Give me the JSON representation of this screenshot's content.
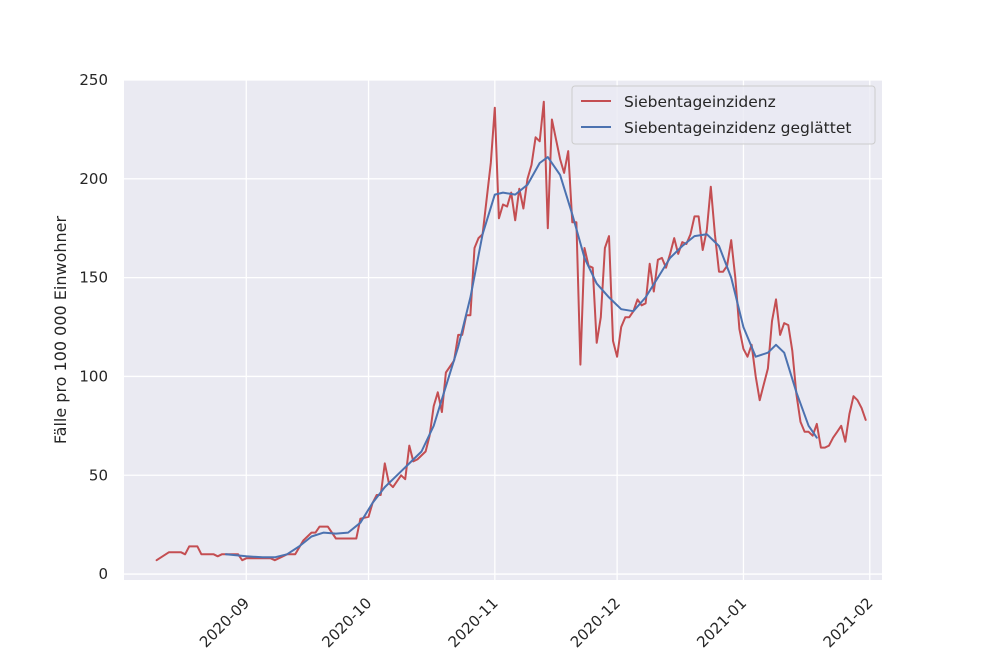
{
  "chart_data": {
    "type": "line",
    "title": "",
    "xlabel": "",
    "ylabel": "Fälle pro 100 000 Einwohner",
    "ylim": [
      -3,
      250
    ],
    "xlim": [
      "2020-08-02",
      "2021-02-04"
    ],
    "yticks": [
      {
        "value": 0,
        "label": "0"
      },
      {
        "value": 50,
        "label": "50"
      },
      {
        "value": 100,
        "label": "100"
      },
      {
        "value": 150,
        "label": "150"
      },
      {
        "value": 200,
        "label": "200"
      },
      {
        "value": 250,
        "label": "250"
      }
    ],
    "xticks": [
      {
        "value": "2020-09-01",
        "label": "2020-09"
      },
      {
        "value": "2020-10-01",
        "label": "2020-10"
      },
      {
        "value": "2020-11-01",
        "label": "2020-11"
      },
      {
        "value": "2020-12-01",
        "label": "2020-12"
      },
      {
        "value": "2021-01-01",
        "label": "2021-01"
      },
      {
        "value": "2021-02-01",
        "label": "2021-02"
      }
    ],
    "grid": true,
    "legend_position": "top-right",
    "colors": {
      "background": "#eaeaf2",
      "grid": "#ffffff",
      "raw": "#c44e52",
      "smooth": "#4c72b0"
    },
    "series": [
      {
        "name": "Siebentageinzidenz",
        "color": "#c44e52",
        "points": [
          [
            "2020-08-10",
            7
          ],
          [
            "2020-08-13",
            11
          ],
          [
            "2020-08-16",
            11
          ],
          [
            "2020-08-17",
            10
          ],
          [
            "2020-08-18",
            14
          ],
          [
            "2020-08-20",
            14
          ],
          [
            "2020-08-21",
            10
          ],
          [
            "2020-08-24",
            10
          ],
          [
            "2020-08-25",
            9
          ],
          [
            "2020-08-26",
            10
          ],
          [
            "2020-08-28",
            10
          ],
          [
            "2020-08-30",
            10
          ],
          [
            "2020-08-31",
            7
          ],
          [
            "2020-09-01",
            8
          ],
          [
            "2020-09-04",
            8
          ],
          [
            "2020-09-07",
            8
          ],
          [
            "2020-09-08",
            7
          ],
          [
            "2020-09-10",
            9
          ],
          [
            "2020-09-11",
            10
          ],
          [
            "2020-09-13",
            10
          ],
          [
            "2020-09-15",
            17
          ],
          [
            "2020-09-17",
            21
          ],
          [
            "2020-09-18",
            21
          ],
          [
            "2020-09-19",
            24
          ],
          [
            "2020-09-21",
            24
          ],
          [
            "2020-09-23",
            18
          ],
          [
            "2020-09-25",
            18
          ],
          [
            "2020-09-26",
            18
          ],
          [
            "2020-09-28",
            18
          ],
          [
            "2020-09-29",
            28
          ],
          [
            "2020-10-01",
            29
          ],
          [
            "2020-10-02",
            36
          ],
          [
            "2020-10-03",
            40
          ],
          [
            "2020-10-04",
            40
          ],
          [
            "2020-10-05",
            56
          ],
          [
            "2020-10-06",
            46
          ],
          [
            "2020-10-07",
            44
          ],
          [
            "2020-10-09",
            50
          ],
          [
            "2020-10-10",
            48
          ],
          [
            "2020-10-11",
            65
          ],
          [
            "2020-10-12",
            57
          ],
          [
            "2020-10-13",
            58
          ],
          [
            "2020-10-15",
            62
          ],
          [
            "2020-10-16",
            70
          ],
          [
            "2020-10-17",
            85
          ],
          [
            "2020-10-18",
            92
          ],
          [
            "2020-10-19",
            82
          ],
          [
            "2020-10-20",
            102
          ],
          [
            "2020-10-22",
            108
          ],
          [
            "2020-10-23",
            121
          ],
          [
            "2020-10-24",
            121
          ],
          [
            "2020-10-25",
            131
          ],
          [
            "2020-10-26",
            131
          ],
          [
            "2020-10-27",
            165
          ],
          [
            "2020-10-28",
            170
          ],
          [
            "2020-10-29",
            172
          ],
          [
            "2020-10-30",
            190
          ],
          [
            "2020-10-31",
            208
          ],
          [
            "2020-11-01",
            236
          ],
          [
            "2020-11-02",
            180
          ],
          [
            "2020-11-03",
            187
          ],
          [
            "2020-11-04",
            186
          ],
          [
            "2020-11-05",
            193
          ],
          [
            "2020-11-06",
            179
          ],
          [
            "2020-11-07",
            195
          ],
          [
            "2020-11-08",
            185
          ],
          [
            "2020-11-09",
            200
          ],
          [
            "2020-11-10",
            207
          ],
          [
            "2020-11-11",
            221
          ],
          [
            "2020-11-12",
            219
          ],
          [
            "2020-11-13",
            239
          ],
          [
            "2020-11-14",
            175
          ],
          [
            "2020-11-15",
            230
          ],
          [
            "2020-11-16",
            220
          ],
          [
            "2020-11-17",
            210
          ],
          [
            "2020-11-18",
            203
          ],
          [
            "2020-11-19",
            214
          ],
          [
            "2020-11-20",
            178
          ],
          [
            "2020-11-21",
            178
          ],
          [
            "2020-11-22",
            106
          ],
          [
            "2020-11-23",
            165
          ],
          [
            "2020-11-24",
            156
          ],
          [
            "2020-11-25",
            155
          ],
          [
            "2020-11-26",
            117
          ],
          [
            "2020-11-27",
            130
          ],
          [
            "2020-11-28",
            165
          ],
          [
            "2020-11-29",
            171
          ],
          [
            "2020-11-30",
            118
          ],
          [
            "2020-12-01",
            110
          ],
          [
            "2020-12-02",
            125
          ],
          [
            "2020-12-03",
            130
          ],
          [
            "2020-12-04",
            130
          ],
          [
            "2020-12-05",
            133
          ],
          [
            "2020-12-06",
            139
          ],
          [
            "2020-12-07",
            136
          ],
          [
            "2020-12-08",
            137
          ],
          [
            "2020-12-09",
            157
          ],
          [
            "2020-12-10",
            143
          ],
          [
            "2020-12-11",
            159
          ],
          [
            "2020-12-12",
            160
          ],
          [
            "2020-12-13",
            155
          ],
          [
            "2020-12-14",
            162
          ],
          [
            "2020-12-15",
            170
          ],
          [
            "2020-12-16",
            162
          ],
          [
            "2020-12-17",
            168
          ],
          [
            "2020-12-18",
            167
          ],
          [
            "2020-12-19",
            172
          ],
          [
            "2020-12-20",
            181
          ],
          [
            "2020-12-21",
            181
          ],
          [
            "2020-12-22",
            164
          ],
          [
            "2020-12-23",
            174
          ],
          [
            "2020-12-24",
            196
          ],
          [
            "2020-12-25",
            172
          ],
          [
            "2020-12-26",
            153
          ],
          [
            "2020-12-27",
            153
          ],
          [
            "2020-12-28",
            156
          ],
          [
            "2020-12-29",
            169
          ],
          [
            "2020-12-30",
            150
          ],
          [
            "2020-12-31",
            124
          ],
          [
            "2021-01-01",
            114
          ],
          [
            "2021-01-02",
            110
          ],
          [
            "2021-01-03",
            116
          ],
          [
            "2021-01-04",
            100
          ],
          [
            "2021-01-05",
            88
          ],
          [
            "2021-01-06",
            96
          ],
          [
            "2021-01-07",
            104
          ],
          [
            "2021-01-08",
            128
          ],
          [
            "2021-01-09",
            139
          ],
          [
            "2021-01-10",
            121
          ],
          [
            "2021-01-11",
            127
          ],
          [
            "2021-01-12",
            126
          ],
          [
            "2021-01-13",
            113
          ],
          [
            "2021-01-14",
            91
          ],
          [
            "2021-01-15",
            77
          ],
          [
            "2021-01-16",
            72
          ],
          [
            "2021-01-17",
            72
          ],
          [
            "2021-01-18",
            70
          ],
          [
            "2021-01-19",
            76
          ],
          [
            "2021-01-20",
            64
          ],
          [
            "2021-01-21",
            64
          ],
          [
            "2021-01-22",
            65
          ],
          [
            "2021-01-23",
            69
          ],
          [
            "2021-01-24",
            72
          ],
          [
            "2021-01-25",
            75
          ],
          [
            "2021-01-26",
            67
          ],
          [
            "2021-01-27",
            81
          ],
          [
            "2021-01-28",
            90
          ],
          [
            "2021-01-29",
            88
          ],
          [
            "2021-01-30",
            84
          ],
          [
            "2021-01-31",
            78
          ]
        ]
      },
      {
        "name": "Siebentageinzidenz geglättet",
        "color": "#4c72b0",
        "points": [
          [
            "2020-08-27",
            10
          ],
          [
            "2020-09-01",
            9
          ],
          [
            "2020-09-05",
            8.5
          ],
          [
            "2020-09-08",
            8.5
          ],
          [
            "2020-09-11",
            10
          ],
          [
            "2020-09-14",
            14
          ],
          [
            "2020-09-17",
            19
          ],
          [
            "2020-09-20",
            21
          ],
          [
            "2020-09-23",
            20.5
          ],
          [
            "2020-09-26",
            21
          ],
          [
            "2020-09-29",
            26
          ],
          [
            "2020-10-02",
            36
          ],
          [
            "2020-10-05",
            44
          ],
          [
            "2020-10-08",
            50
          ],
          [
            "2020-10-11",
            56
          ],
          [
            "2020-10-14",
            62
          ],
          [
            "2020-10-17",
            75
          ],
          [
            "2020-10-20",
            95
          ],
          [
            "2020-10-23",
            115
          ],
          [
            "2020-10-26",
            140
          ],
          [
            "2020-10-29",
            172
          ],
          [
            "2020-11-01",
            192
          ],
          [
            "2020-11-03",
            193
          ],
          [
            "2020-11-06",
            192
          ],
          [
            "2020-11-09",
            197
          ],
          [
            "2020-11-12",
            208
          ],
          [
            "2020-11-14",
            211
          ],
          [
            "2020-11-17",
            202
          ],
          [
            "2020-11-20",
            182
          ],
          [
            "2020-11-23",
            160
          ],
          [
            "2020-11-26",
            147
          ],
          [
            "2020-11-29",
            140
          ],
          [
            "2020-12-02",
            134
          ],
          [
            "2020-12-05",
            133
          ],
          [
            "2020-12-08",
            140
          ],
          [
            "2020-12-11",
            150
          ],
          [
            "2020-12-14",
            160
          ],
          [
            "2020-12-17",
            166
          ],
          [
            "2020-12-20",
            171
          ],
          [
            "2020-12-23",
            172
          ],
          [
            "2020-12-26",
            166
          ],
          [
            "2020-12-29",
            150
          ],
          [
            "2021-01-01",
            125
          ],
          [
            "2021-01-04",
            110
          ],
          [
            "2021-01-07",
            112
          ],
          [
            "2021-01-09",
            116
          ],
          [
            "2021-01-11",
            112
          ],
          [
            "2021-01-14",
            92
          ],
          [
            "2021-01-17",
            75
          ],
          [
            "2021-01-19",
            69
          ]
        ]
      }
    ]
  }
}
